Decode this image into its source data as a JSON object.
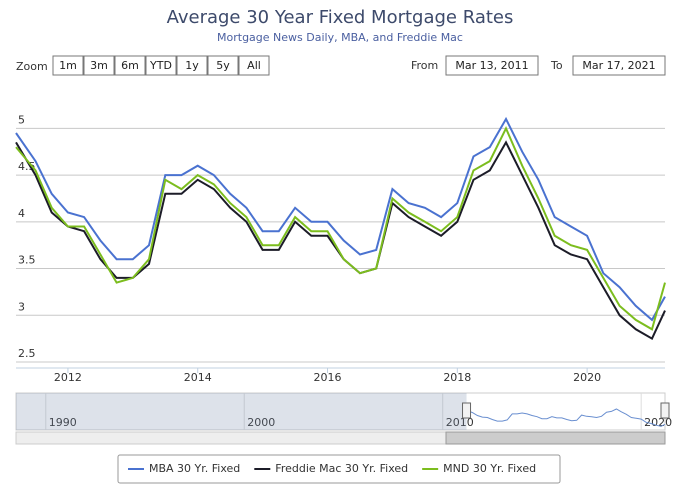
{
  "chart_data": {
    "type": "line",
    "title": "Average 30 Year Fixed Mortgage Rates",
    "subtitle": "Mortgage News Daily, MBA, and Freddie Mac",
    "zoom_label": "Zoom",
    "zoom_buttons": [
      "1m",
      "3m",
      "6m",
      "YTD",
      "1y",
      "5y",
      "All"
    ],
    "from_label": "From",
    "from_date": "Mar 13, 2011",
    "to_label": "To",
    "to_date": "Mar 17, 2021",
    "x": [
      2011.2,
      2011.5,
      2011.75,
      2012.0,
      2012.25,
      2012.5,
      2012.75,
      2013.0,
      2013.25,
      2013.5,
      2013.75,
      2014.0,
      2014.25,
      2014.5,
      2014.75,
      2015.0,
      2015.25,
      2015.5,
      2015.75,
      2016.0,
      2016.25,
      2016.5,
      2016.75,
      2017.0,
      2017.25,
      2017.5,
      2017.75,
      2018.0,
      2018.25,
      2018.5,
      2018.75,
      2019.0,
      2019.25,
      2019.5,
      2019.75,
      2020.0,
      2020.25,
      2020.5,
      2020.75,
      2021.0,
      2021.2
    ],
    "series": [
      {
        "name": "MBA 30 Yr. Fixed",
        "color": "#4a72d0",
        "values": [
          4.95,
          4.65,
          4.3,
          4.1,
          4.05,
          3.8,
          3.6,
          3.6,
          3.75,
          4.5,
          4.5,
          4.6,
          4.5,
          4.3,
          4.15,
          3.9,
          3.9,
          4.15,
          4.0,
          4.0,
          3.8,
          3.65,
          3.7,
          4.35,
          4.2,
          4.15,
          4.05,
          4.2,
          4.7,
          4.8,
          5.1,
          4.75,
          4.45,
          4.05,
          3.95,
          3.85,
          3.45,
          3.3,
          3.1,
          2.95,
          3.2
        ]
      },
      {
        "name": "Freddie Mac 30 Yr. Fixed",
        "color": "#1c1c28",
        "values": [
          4.85,
          4.5,
          4.1,
          3.95,
          3.9,
          3.6,
          3.4,
          3.4,
          3.55,
          4.3,
          4.3,
          4.45,
          4.35,
          4.15,
          4.0,
          3.7,
          3.7,
          4.0,
          3.85,
          3.85,
          3.6,
          3.45,
          3.5,
          4.2,
          4.05,
          3.95,
          3.85,
          4.0,
          4.45,
          4.55,
          4.85,
          4.5,
          4.15,
          3.75,
          3.65,
          3.6,
          3.3,
          3.0,
          2.85,
          2.75,
          3.05
        ]
      },
      {
        "name": "MND 30 Yr. Fixed",
        "color": "#7cbd1e",
        "values": [
          4.8,
          4.55,
          4.15,
          3.95,
          3.95,
          3.65,
          3.35,
          3.4,
          3.6,
          4.45,
          4.35,
          4.5,
          4.4,
          4.2,
          4.05,
          3.75,
          3.75,
          4.05,
          3.9,
          3.9,
          3.6,
          3.45,
          3.5,
          4.25,
          4.1,
          4.0,
          3.9,
          4.05,
          4.55,
          4.65,
          5.0,
          4.6,
          4.25,
          3.85,
          3.75,
          3.7,
          3.4,
          3.1,
          2.95,
          2.85,
          3.35
        ]
      }
    ],
    "xlim": [
      2011.2,
      2021.2
    ],
    "xticks": [
      2012,
      2014,
      2016,
      2018,
      2020
    ],
    "ylim": [
      2.5,
      5.25
    ],
    "yticks": [
      2.5,
      3,
      3.5,
      4,
      4.5,
      5
    ],
    "grid": true,
    "navigator": {
      "xlim": [
        1988.5,
        2021.2
      ],
      "xticks": [
        1990,
        2000,
        2010,
        2020
      ]
    }
  }
}
